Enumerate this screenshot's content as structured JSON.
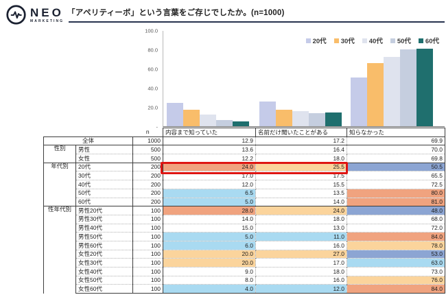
{
  "brand": {
    "name": "NEO",
    "sub": "MARKETING"
  },
  "header": {
    "title": "「アペリティーボ」という言葉をご存じでしたか。(n=1000)"
  },
  "chart_data": {
    "type": "bar",
    "categories": [
      "内容まで知っていた",
      "名前だけ聞いたことがある",
      "知らなかった"
    ],
    "series": [
      {
        "name": "20代",
        "color": "#c5cbe9",
        "values": [
          24.0,
          25.5,
          50.5
        ]
      },
      {
        "name": "30代",
        "color": "#f9bd6a",
        "values": [
          17.0,
          17.5,
          65.5
        ]
      },
      {
        "name": "40代",
        "color": "#dfe3ee",
        "values": [
          12.0,
          15.5,
          72.5
        ]
      },
      {
        "name": "50代",
        "color": "#c5cedf",
        "values": [
          6.5,
          13.5,
          80.0
        ]
      },
      {
        "name": "60代",
        "color": "#1f6f6e",
        "values": [
          5.0,
          14.0,
          81.0
        ]
      }
    ],
    "title": "「アペリティーボ」という言葉をご存じでしたか。(n=1000)",
    "xlabel": "",
    "ylabel": "",
    "ylim": [
      0,
      100
    ],
    "yticks": [
      "100.0",
      "80.0",
      "60.0",
      "40.0",
      "20.0",
      "-"
    ],
    "grid": false,
    "legend_position": "top-right"
  },
  "table": {
    "n_header": "n",
    "col_headers": [
      "内容まで知っていた",
      "名前だけ聞いたことがある",
      "知らなかった"
    ],
    "color_map": {
      "white": "#ffffff",
      "salmon": "#f0a37f",
      "peach": "#fbd49c",
      "sky": "#a9daf1",
      "peri": "#8ca5d3"
    },
    "highlight_border": "#df1512",
    "rows": [
      {
        "merged": "全体",
        "n": "1000",
        "vals": [
          "12.9",
          "17.2",
          "69.9"
        ],
        "colors": [
          "white",
          "white",
          "white"
        ],
        "sect": true
      },
      {
        "group": "性別",
        "gspan": 2,
        "label": "男性",
        "n": "500",
        "vals": [
          "13.6",
          "16.4",
          "70.0"
        ],
        "colors": [
          "white",
          "white",
          "white"
        ],
        "sect": true
      },
      {
        "label": "女性",
        "n": "500",
        "vals": [
          "12.2",
          "18.0",
          "69.8"
        ],
        "colors": [
          "white",
          "white",
          "white"
        ]
      },
      {
        "group": "年代別",
        "gspan": 5,
        "label": "20代",
        "n": "200",
        "vals": [
          "24.0",
          "25.5",
          "50.5"
        ],
        "colors": [
          "salmon",
          "peach",
          "peri"
        ],
        "sect": true
      },
      {
        "label": "30代",
        "n": "200",
        "vals": [
          "17.0",
          "17.5",
          "65.5"
        ],
        "colors": [
          "white",
          "white",
          "white"
        ]
      },
      {
        "label": "40代",
        "n": "200",
        "vals": [
          "12.0",
          "15.5",
          "72.5"
        ],
        "colors": [
          "white",
          "white",
          "white"
        ]
      },
      {
        "label": "50代",
        "n": "200",
        "vals": [
          "6.5",
          "13.5",
          "80.0"
        ],
        "colors": [
          "sky",
          "white",
          "salmon"
        ]
      },
      {
        "label": "60代",
        "n": "200",
        "vals": [
          "5.0",
          "14.0",
          "81.0"
        ],
        "colors": [
          "sky",
          "white",
          "salmon"
        ]
      },
      {
        "group": "性年代別",
        "gspan": 10,
        "label": "男性20代",
        "n": "100",
        "vals": [
          "28.0",
          "24.0",
          "48.0"
        ],
        "colors": [
          "salmon",
          "peach",
          "peri"
        ],
        "sect": true
      },
      {
        "label": "男性30代",
        "n": "100",
        "vals": [
          "14.0",
          "18.0",
          "68.0"
        ],
        "colors": [
          "white",
          "white",
          "white"
        ]
      },
      {
        "label": "男性40代",
        "n": "100",
        "vals": [
          "15.0",
          "13.0",
          "72.0"
        ],
        "colors": [
          "white",
          "white",
          "white"
        ]
      },
      {
        "label": "男性50代",
        "n": "100",
        "vals": [
          "5.0",
          "11.0",
          "84.0"
        ],
        "colors": [
          "sky",
          "sky",
          "salmon"
        ]
      },
      {
        "label": "男性60代",
        "n": "100",
        "vals": [
          "6.0",
          "16.0",
          "78.0"
        ],
        "colors": [
          "sky",
          "white",
          "peach"
        ]
      },
      {
        "label": "女性20代",
        "n": "100",
        "vals": [
          "20.0",
          "27.0",
          "53.0"
        ],
        "colors": [
          "peach",
          "peach",
          "peri"
        ]
      },
      {
        "label": "女性30代",
        "n": "100",
        "vals": [
          "20.0",
          "17.0",
          "63.0"
        ],
        "colors": [
          "peach",
          "white",
          "sky"
        ]
      },
      {
        "label": "女性40代",
        "n": "100",
        "vals": [
          "9.0",
          "18.0",
          "73.0"
        ],
        "colors": [
          "white",
          "white",
          "white"
        ]
      },
      {
        "label": "女性50代",
        "n": "100",
        "vals": [
          "8.0",
          "16.0",
          "76.0"
        ],
        "colors": [
          "white",
          "white",
          "peach"
        ]
      },
      {
        "label": "女性60代",
        "n": "100",
        "vals": [
          "4.0",
          "12.0",
          "84.0"
        ],
        "colors": [
          "sky",
          "sky",
          "salmon"
        ]
      }
    ]
  }
}
